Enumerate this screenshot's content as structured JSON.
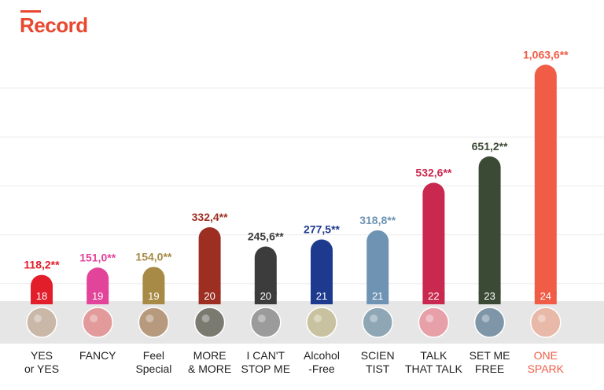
{
  "title": "Record",
  "chart_data": {
    "type": "bar",
    "title": "Record",
    "xlabel": "",
    "ylabel": "",
    "ylim": [
      0,
      1100
    ],
    "grid": true,
    "categories": [
      [
        "YES",
        "or YES"
      ],
      [
        "FANCY"
      ],
      [
        "Feel",
        "Special"
      ],
      [
        "MORE",
        "& MORE"
      ],
      [
        "I CAN'T",
        "STOP ME"
      ],
      [
        "Alcohol",
        "-Free"
      ],
      [
        "SCIEN",
        "TIST"
      ],
      [
        "TALK",
        "THAT TALK"
      ],
      [
        "SET ME",
        "FREE"
      ],
      [
        "ONE",
        "SPARK"
      ]
    ],
    "values": [
      118.2,
      151.0,
      154.0,
      332.4,
      245.6,
      277.5,
      318.8,
      532.6,
      651.2,
      1063.6
    ],
    "value_labels": [
      "118,2**",
      "151,0**",
      "154,0**",
      "332,4**",
      "245,6**",
      "277,5**",
      "318,8**",
      "532,6**",
      "651,2**",
      "1,063,6**"
    ],
    "bar_numbers": [
      "18",
      "19",
      "19",
      "20",
      "20",
      "21",
      "21",
      "22",
      "23",
      "24"
    ],
    "colors": [
      "#e21e2b",
      "#e2449a",
      "#a78a46",
      "#9c2f22",
      "#3c3c3c",
      "#1d3a8f",
      "#6f93b3",
      "#c9294f",
      "#3a4a35",
      "#f05c45"
    ],
    "label_colors": [
      "#222222",
      "#222222",
      "#222222",
      "#222222",
      "#222222",
      "#222222",
      "#222222",
      "#222222",
      "#222222",
      "#f05c45"
    ],
    "cover_icons": [
      "album-cover-yes-or-yes",
      "album-cover-fancy",
      "album-cover-feel-special",
      "album-cover-more-and-more",
      "album-cover-i-cant-stop-me",
      "album-cover-alcohol-free",
      "album-cover-scientist",
      "album-cover-talk-that-talk",
      "album-cover-set-me-free",
      "album-cover-one-spark"
    ],
    "cover_colors": [
      "#c9b7a8",
      "#e29a9a",
      "#b79a7e",
      "#7a7a70",
      "#9b9b9b",
      "#c9c2a0",
      "#8fa6b5",
      "#e8a0a8",
      "#7f96a8",
      "#e8b8a8"
    ]
  }
}
